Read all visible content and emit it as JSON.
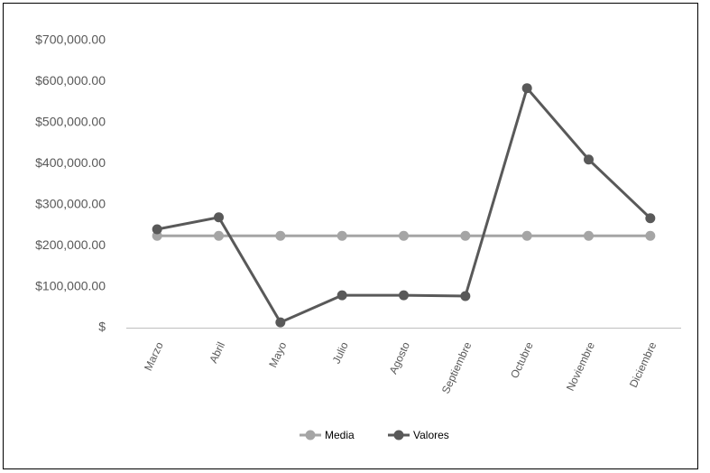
{
  "chart_data": {
    "type": "line",
    "categories": [
      "Marzo",
      "Abril",
      "Mayo",
      "Julio",
      "Agosto",
      "Septiembre",
      "Octubre",
      "Noviembre",
      "Diciembre"
    ],
    "series": [
      {
        "name": "Media",
        "color": "#a5a5a5",
        "values": [
          224000,
          224000,
          224000,
          224000,
          224000,
          224000,
          224000,
          224000,
          224000
        ]
      },
      {
        "name": "Valores",
        "color": "#595959",
        "values": [
          240000,
          269000,
          13000,
          79000,
          79000,
          77000,
          584000,
          410000,
          267000
        ]
      }
    ],
    "ylim": [
      0,
      700000
    ],
    "yticks": [
      {
        "value": 0,
        "label": "$"
      },
      {
        "value": 100000,
        "label": "$100,000.00"
      },
      {
        "value": 200000,
        "label": "$200,000.00"
      },
      {
        "value": 300000,
        "label": "$300,000.00"
      },
      {
        "value": 400000,
        "label": "$400,000.00"
      },
      {
        "value": 500000,
        "label": "$500,000.00"
      },
      {
        "value": 600000,
        "label": "$600,000.00"
      },
      {
        "value": 700000,
        "label": "$700,000.00"
      }
    ],
    "legend": "bottom"
  }
}
